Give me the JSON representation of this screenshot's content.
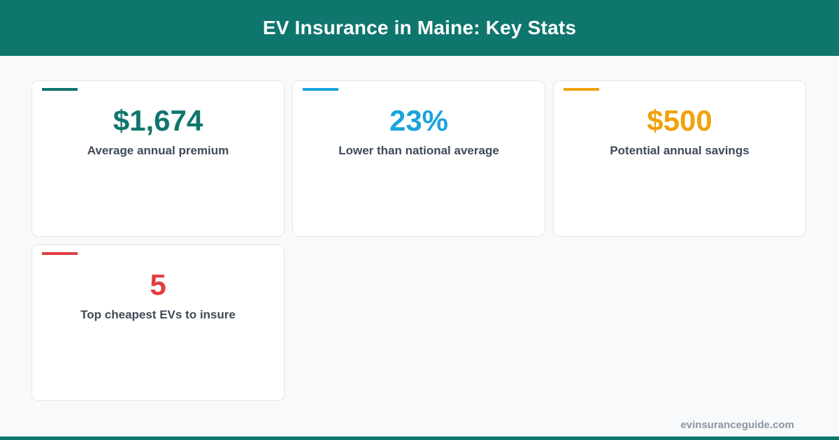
{
  "header": {
    "title": "EV Insurance in Maine: Key Stats"
  },
  "stats": [
    {
      "value": "$1,674",
      "label": "Average annual premium",
      "color": "#0f766e"
    },
    {
      "value": "23%",
      "label": "Lower than national average",
      "color": "#1aa3db"
    },
    {
      "value": "$500",
      "label": "Potential annual savings",
      "color": "#f0a20b"
    },
    {
      "value": "5",
      "label": "Top cheapest EVs to insure",
      "color": "#e03e3e"
    }
  ],
  "footer": {
    "site": "evinsuranceguide.com"
  },
  "colors": {
    "brand": "#0f766e",
    "background": "#f8f9fb"
  }
}
